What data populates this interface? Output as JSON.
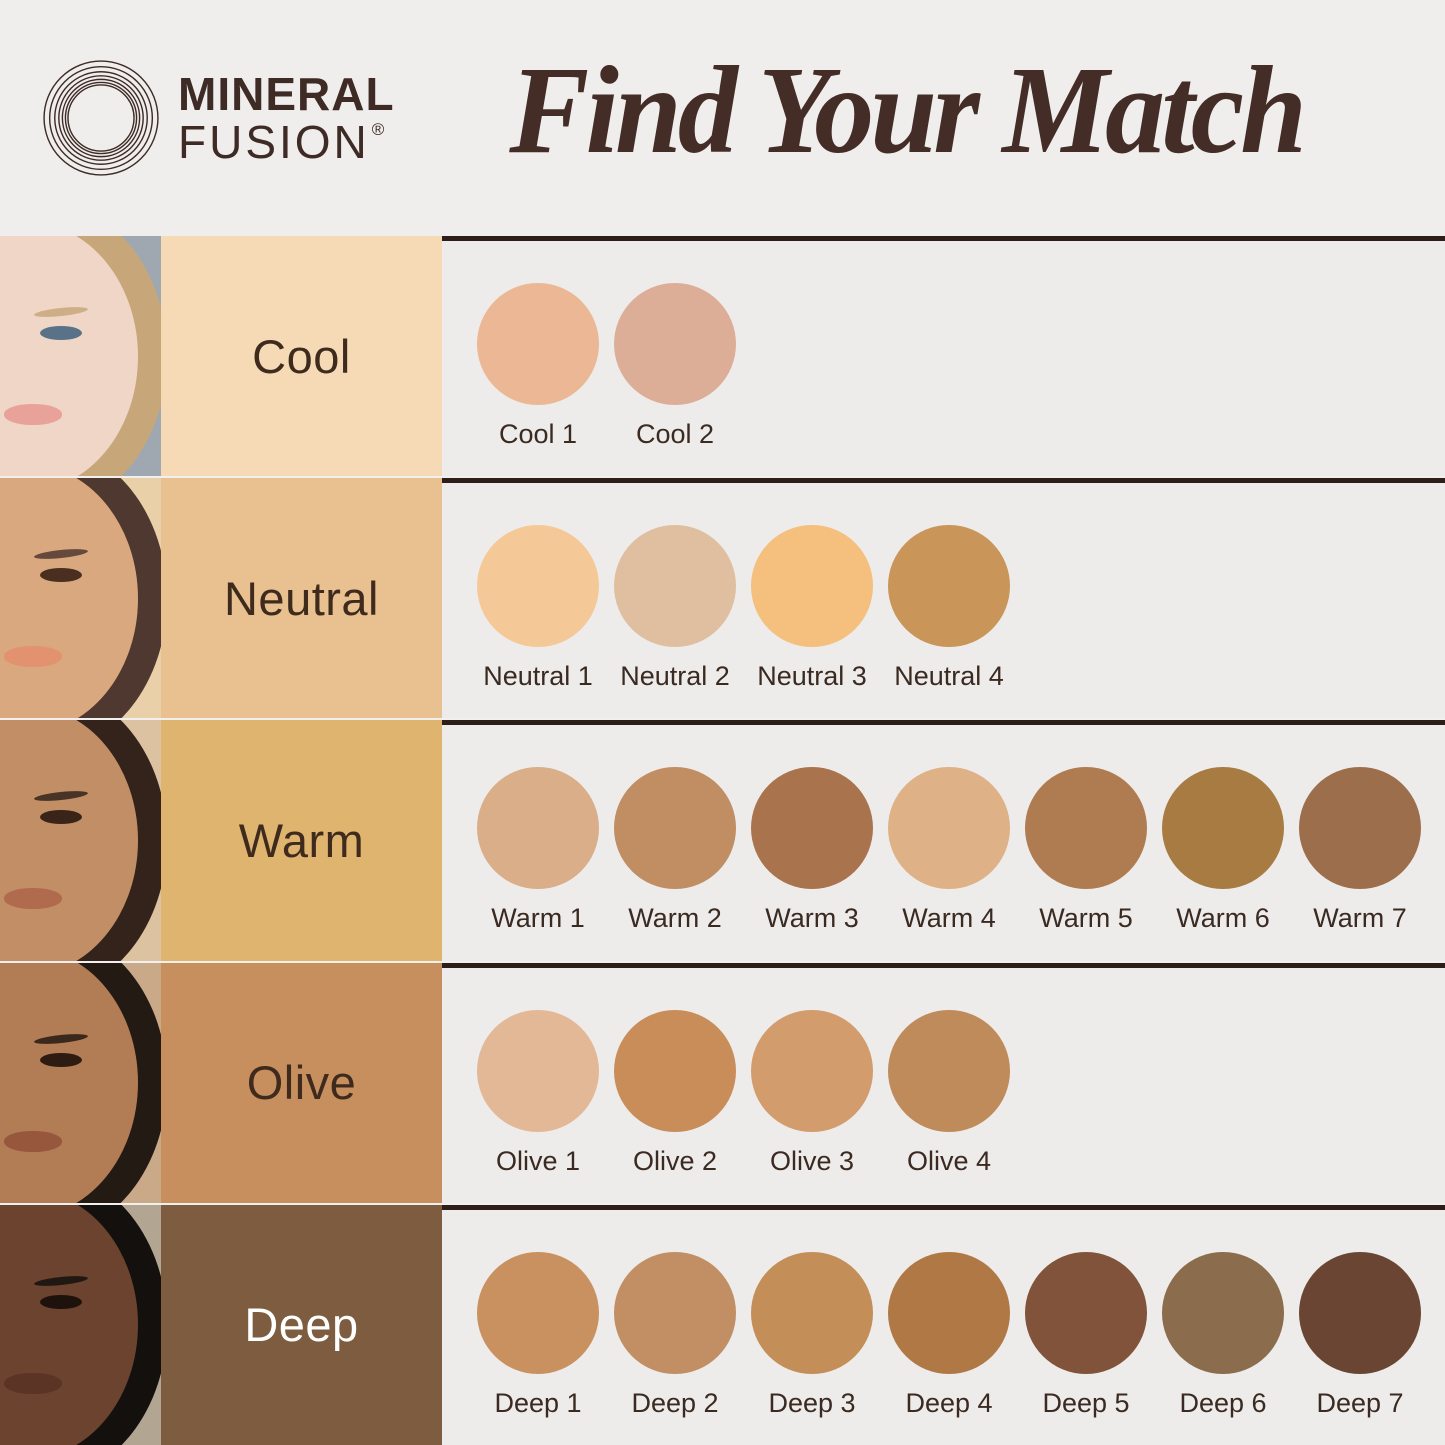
{
  "brand": {
    "line1": "MINERAL",
    "line2": "FUSION",
    "registered": "®",
    "logo_color": "#3e2b26"
  },
  "title": "Find Your Match",
  "colors": {
    "page_bg": "#f0eeec",
    "panel_bg": "#edecea",
    "divider": "#2d1e19",
    "title_text": "#452d27",
    "swatch_label_text": "#3a2a21"
  },
  "rows": [
    {
      "label": "Cool",
      "label_bg": "#f5dab5",
      "label_color": "#3f2b1e",
      "face": {
        "bg": "#9fa8b0",
        "skin": "#f0d6c6",
        "hair": "#c7a77a",
        "lip": "#e8a29a",
        "eye": "#5a7288"
      },
      "swatches": [
        {
          "name": "Cool 1",
          "color": "#ecb795"
        },
        {
          "name": "Cool 2",
          "color": "#dcae97"
        }
      ]
    },
    {
      "label": "Neutral",
      "label_bg": "#e9c08f",
      "label_color": "#3f2b1e",
      "face": {
        "bg": "#ead0a9",
        "skin": "#d9a87f",
        "hair": "#4f3830",
        "lip": "#e2926f",
        "eye": "#4a2e1f"
      },
      "swatches": [
        {
          "name": "Neutral 1",
          "color": "#f4c997"
        },
        {
          "name": "Neutral 2",
          "color": "#dfbf9f"
        },
        {
          "name": "Neutral 3",
          "color": "#f5bf7d"
        },
        {
          "name": "Neutral 4",
          "color": "#c99559"
        }
      ]
    },
    {
      "label": "Warm",
      "label_bg": "#dfb46f",
      "label_color": "#3f2b1e",
      "face": {
        "bg": "#dcc2a1",
        "skin": "#c28e66",
        "hair": "#33231b",
        "lip": "#b06b4f",
        "eye": "#3a241a"
      },
      "swatches": [
        {
          "name": "Warm 1",
          "color": "#d9ae88"
        },
        {
          "name": "Warm 2",
          "color": "#c18d63"
        },
        {
          "name": "Warm 3",
          "color": "#a9744d"
        },
        {
          "name": "Warm 4",
          "color": "#dfb187"
        },
        {
          "name": "Warm 5",
          "color": "#af7b51"
        },
        {
          "name": "Warm 6",
          "color": "#a87b43"
        },
        {
          "name": "Warm 7",
          "color": "#9d6e4c"
        }
      ]
    },
    {
      "label": "Olive",
      "label_bg": "#c78f5e",
      "label_color": "#3f2b1e",
      "face": {
        "bg": "#c9a988",
        "skin": "#b27c55",
        "hair": "#241a14",
        "lip": "#96573d",
        "eye": "#2e1c13"
      },
      "swatches": [
        {
          "name": "Olive 1",
          "color": "#e3b897"
        },
        {
          "name": "Olive 2",
          "color": "#c98d59"
        },
        {
          "name": "Olive 3",
          "color": "#d29c6d"
        },
        {
          "name": "Olive 4",
          "color": "#c08b5b"
        }
      ]
    },
    {
      "label": "Deep",
      "label_bg": "#7d5c3f",
      "label_color": "#ffffff",
      "face": {
        "bg": "#b2a693",
        "skin": "#6b432e",
        "hair": "#14100e",
        "lip": "#5c3425",
        "eye": "#1e120c"
      },
      "swatches": [
        {
          "name": "Deep 1",
          "color": "#ca9160"
        },
        {
          "name": "Deep 2",
          "color": "#c18f63"
        },
        {
          "name": "Deep 3",
          "color": "#c38e58"
        },
        {
          "name": "Deep 4",
          "color": "#b07845"
        },
        {
          "name": "Deep 5",
          "color": "#80533a"
        },
        {
          "name": "Deep 6",
          "color": "#8b6c4c"
        },
        {
          "name": "Deep 7",
          "color": "#6a4533"
        }
      ]
    }
  ]
}
